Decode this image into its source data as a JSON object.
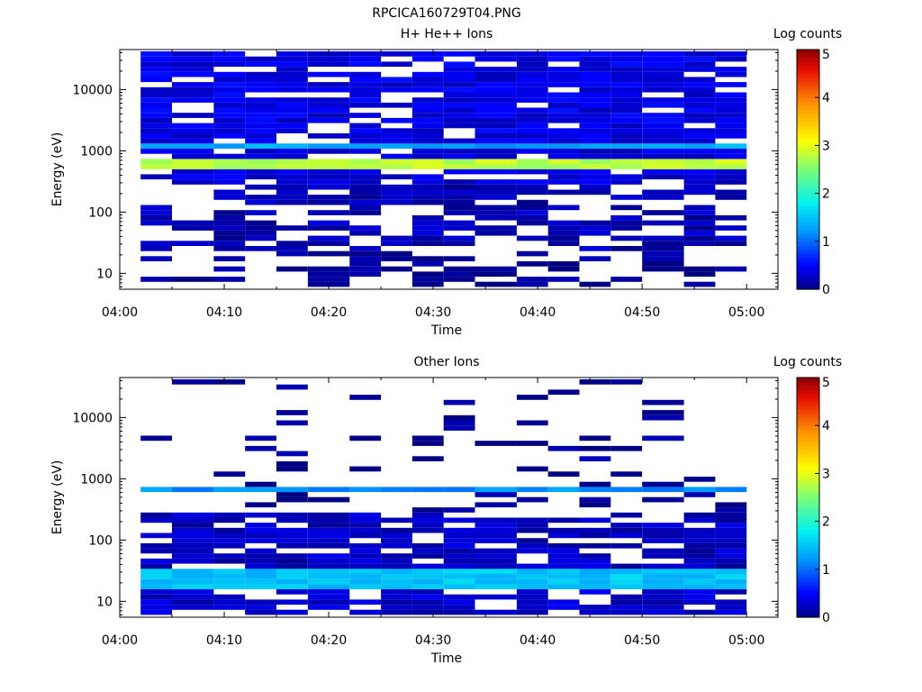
{
  "figure_title": "RPCICA160729T04.PNG",
  "chart_data": [
    {
      "type": "heatmap",
      "title": "H+ He++ Ions",
      "xlabel": "Time",
      "ylabel": "Energy (eV)",
      "x_ticks": [
        "04:00",
        "04:10",
        "04:20",
        "04:30",
        "04:40",
        "04:50",
        "05:00"
      ],
      "xlim": [
        "04:00",
        "05:03"
      ],
      "y_scale": "log",
      "y_ticks": [
        "10",
        "100",
        "1000",
        "10000"
      ],
      "ylim": [
        5.5,
        45000
      ],
      "colorbar": {
        "label": "Log counts",
        "ticks": [
          "0",
          "1",
          "2",
          "3",
          "4",
          "5"
        ],
        "range": [
          0,
          5
        ]
      },
      "time_bins_start": [
        "04:02",
        "04:05",
        "04:09",
        "04:12",
        "04:15",
        "04:18",
        "04:22",
        "04:25",
        "04:28",
        "04:31",
        "04:34",
        "04:38",
        "04:41",
        "04:44",
        "04:47",
        "04:50",
        "04:54",
        "04:57"
      ],
      "time_bins_end": "05:00",
      "bands": [
        {
          "emin": 550,
          "emax": 780,
          "level": 2.8,
          "cover": 1.0
        },
        {
          "emin": 1150,
          "emax": 1400,
          "level": 1.3,
          "cover": 1.0
        },
        {
          "emin": 260,
          "emax": 1150,
          "level": 0.35,
          "cover": 0.82
        },
        {
          "emin": 780,
          "emax": 45000,
          "level": 0.4,
          "cover": 0.85
        },
        {
          "emin": 25,
          "emax": 260,
          "level": 0.2,
          "cover": 0.6
        },
        {
          "emin": 6,
          "emax": 25,
          "level": 0.08,
          "cover": 0.35
        }
      ]
    },
    {
      "type": "heatmap",
      "title": "Other Ions",
      "xlabel": "Time",
      "ylabel": "Energy (eV)",
      "x_ticks": [
        "04:00",
        "04:10",
        "04:20",
        "04:30",
        "04:40",
        "04:50",
        "05:00"
      ],
      "xlim": [
        "04:00",
        "05:03"
      ],
      "y_scale": "log",
      "y_ticks": [
        "10",
        "100",
        "1000",
        "10000"
      ],
      "ylim": [
        5.5,
        45000
      ],
      "colorbar": {
        "label": "Log counts",
        "ticks": [
          "0",
          "1",
          "2",
          "3",
          "4",
          "5"
        ],
        "range": [
          0,
          5
        ]
      },
      "time_bins_start": [
        "04:02",
        "04:05",
        "04:09",
        "04:12",
        "04:15",
        "04:18",
        "04:22",
        "04:25",
        "04:28",
        "04:31",
        "04:34",
        "04:38",
        "04:41",
        "04:44",
        "04:47",
        "04:50",
        "04:54",
        "04:57"
      ],
      "time_bins_end": "05:00",
      "bands": [
        {
          "emin": 590,
          "emax": 720,
          "level": 1.2,
          "cover": 1.0
        },
        {
          "emin": 15,
          "emax": 36,
          "level": 1.5,
          "cover": 1.0
        },
        {
          "emin": 36,
          "emax": 300,
          "level": 0.25,
          "cover": 0.75
        },
        {
          "emin": 300,
          "emax": 40000,
          "level": 0.05,
          "cover": 0.12
        },
        {
          "emin": 6,
          "emax": 15,
          "level": 0.3,
          "cover": 0.7
        }
      ]
    }
  ]
}
